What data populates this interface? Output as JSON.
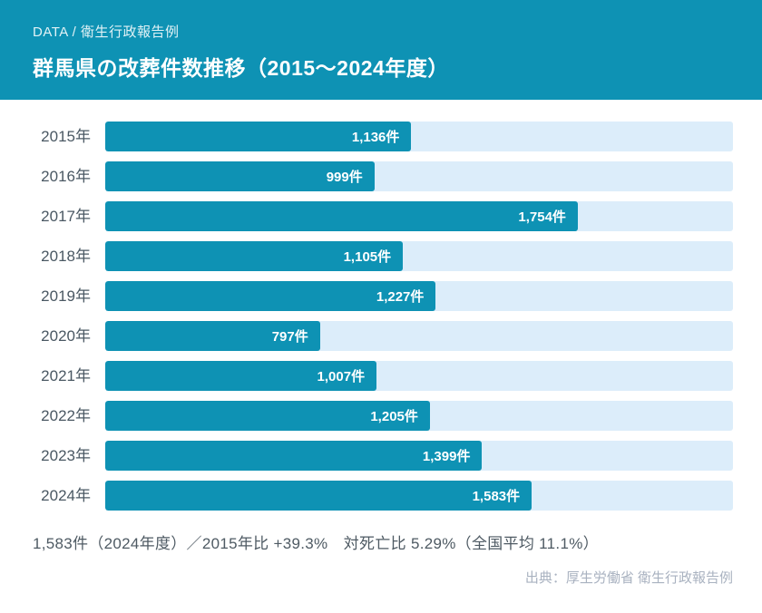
{
  "header": {
    "kicker": "DATA / 衛生行政報告例",
    "title": "群馬県の改葬件数推移（2015〜2024年度）",
    "bg_color": "#0e92b4"
  },
  "chart_data": {
    "type": "bar",
    "orientation": "horizontal",
    "title": "群馬県の改葬件数推移（2015〜2024年度）",
    "categories": [
      "2015年",
      "2016年",
      "2017年",
      "2018年",
      "2019年",
      "2020年",
      "2021年",
      "2022年",
      "2023年",
      "2024年"
    ],
    "values": [
      1136,
      999,
      1754,
      1105,
      1227,
      797,
      1007,
      1205,
      1399,
      1583
    ],
    "value_labels": [
      "1,136件",
      "999件",
      "1,754件",
      "1,105件",
      "1,227件",
      "797件",
      "1,007件",
      "1,205件",
      "1,399件",
      "1,583件"
    ],
    "unit": "件",
    "axis_max": 2330,
    "grid": false,
    "legend_position": "none",
    "bar_color": "#0e92b4",
    "track_color": "#dcedfa"
  },
  "footer": {
    "summary": "1,583件（2024年度）／2015年比 +39.3%　対死亡比 5.29%（全国平均 11.1%）",
    "source": "出典：厚生労働省 衛生行政報告例"
  }
}
